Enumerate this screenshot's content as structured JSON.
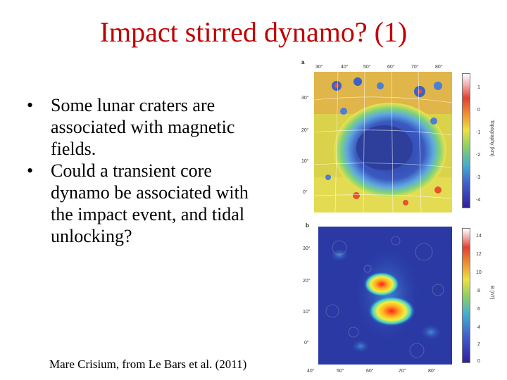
{
  "slide": {
    "title": "Impact stirred dynamo? (1)",
    "bullets": [
      {
        "marker": "•",
        "text": "Some lunar craters are associated with magnetic fields."
      },
      {
        "marker": "•",
        "text": "Could a transient core dynamo be associated with the impact event, and tidal unlocking?"
      }
    ],
    "caption": "Mare Crisium, from Le Bars et al. (2011)"
  },
  "figure": {
    "panel_a": {
      "label": "a",
      "lon_ticks": [
        "30°",
        "40°",
        "50°",
        "60°",
        "70°",
        "80°"
      ],
      "lat_ticks": [
        "30°",
        "20°",
        "10°",
        "0°"
      ],
      "colorbar_ticks": [
        "1",
        "0",
        "-1",
        "-2",
        "-3",
        "-4"
      ],
      "colorbar_label": "Topography (km)"
    },
    "panel_b": {
      "label": "b",
      "lon_ticks": [
        "40°",
        "50°",
        "60°",
        "70°",
        "80°"
      ],
      "lat_ticks": [
        "30°",
        "20°",
        "10°",
        "0°"
      ],
      "colorbar_ticks": [
        "14",
        "12",
        "10",
        "8",
        "6",
        "4",
        "2",
        "0"
      ],
      "colorbar_label": "B (nT)"
    }
  }
}
